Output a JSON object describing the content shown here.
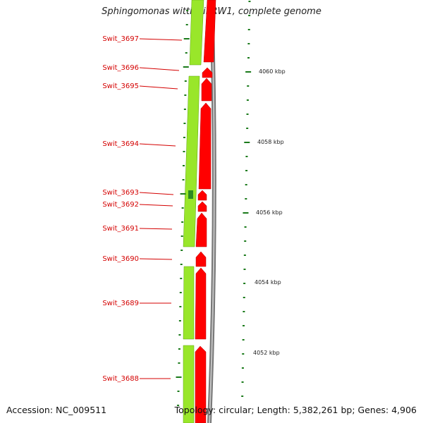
{
  "title": "Sphingomonas wittichii RW1, complete genome",
  "footer": {
    "accession": "Accession: NC_009511",
    "topology": "Topology: circular; Length: 5,382,261 bp; Genes: 4,906"
  },
  "colors": {
    "gene_label": "#d40000",
    "forward_track": "#99e62a",
    "cds_track": "#ff0000",
    "backbone": "#888888",
    "tick": "#1a7a1a"
  },
  "gene_labels": [
    "Swit_3697",
    "Swit_3696",
    "Swit_3695",
    "Swit_3694",
    "Swit_3693",
    "Swit_3692",
    "Swit_3691",
    "Swit_3690",
    "Swit_3689",
    "Swit_3688"
  ],
  "kbp_labels": [
    "4060 kbp",
    "4058 kbp",
    "4056 kbp",
    "4054 kbp",
    "4052 kbp"
  ]
}
